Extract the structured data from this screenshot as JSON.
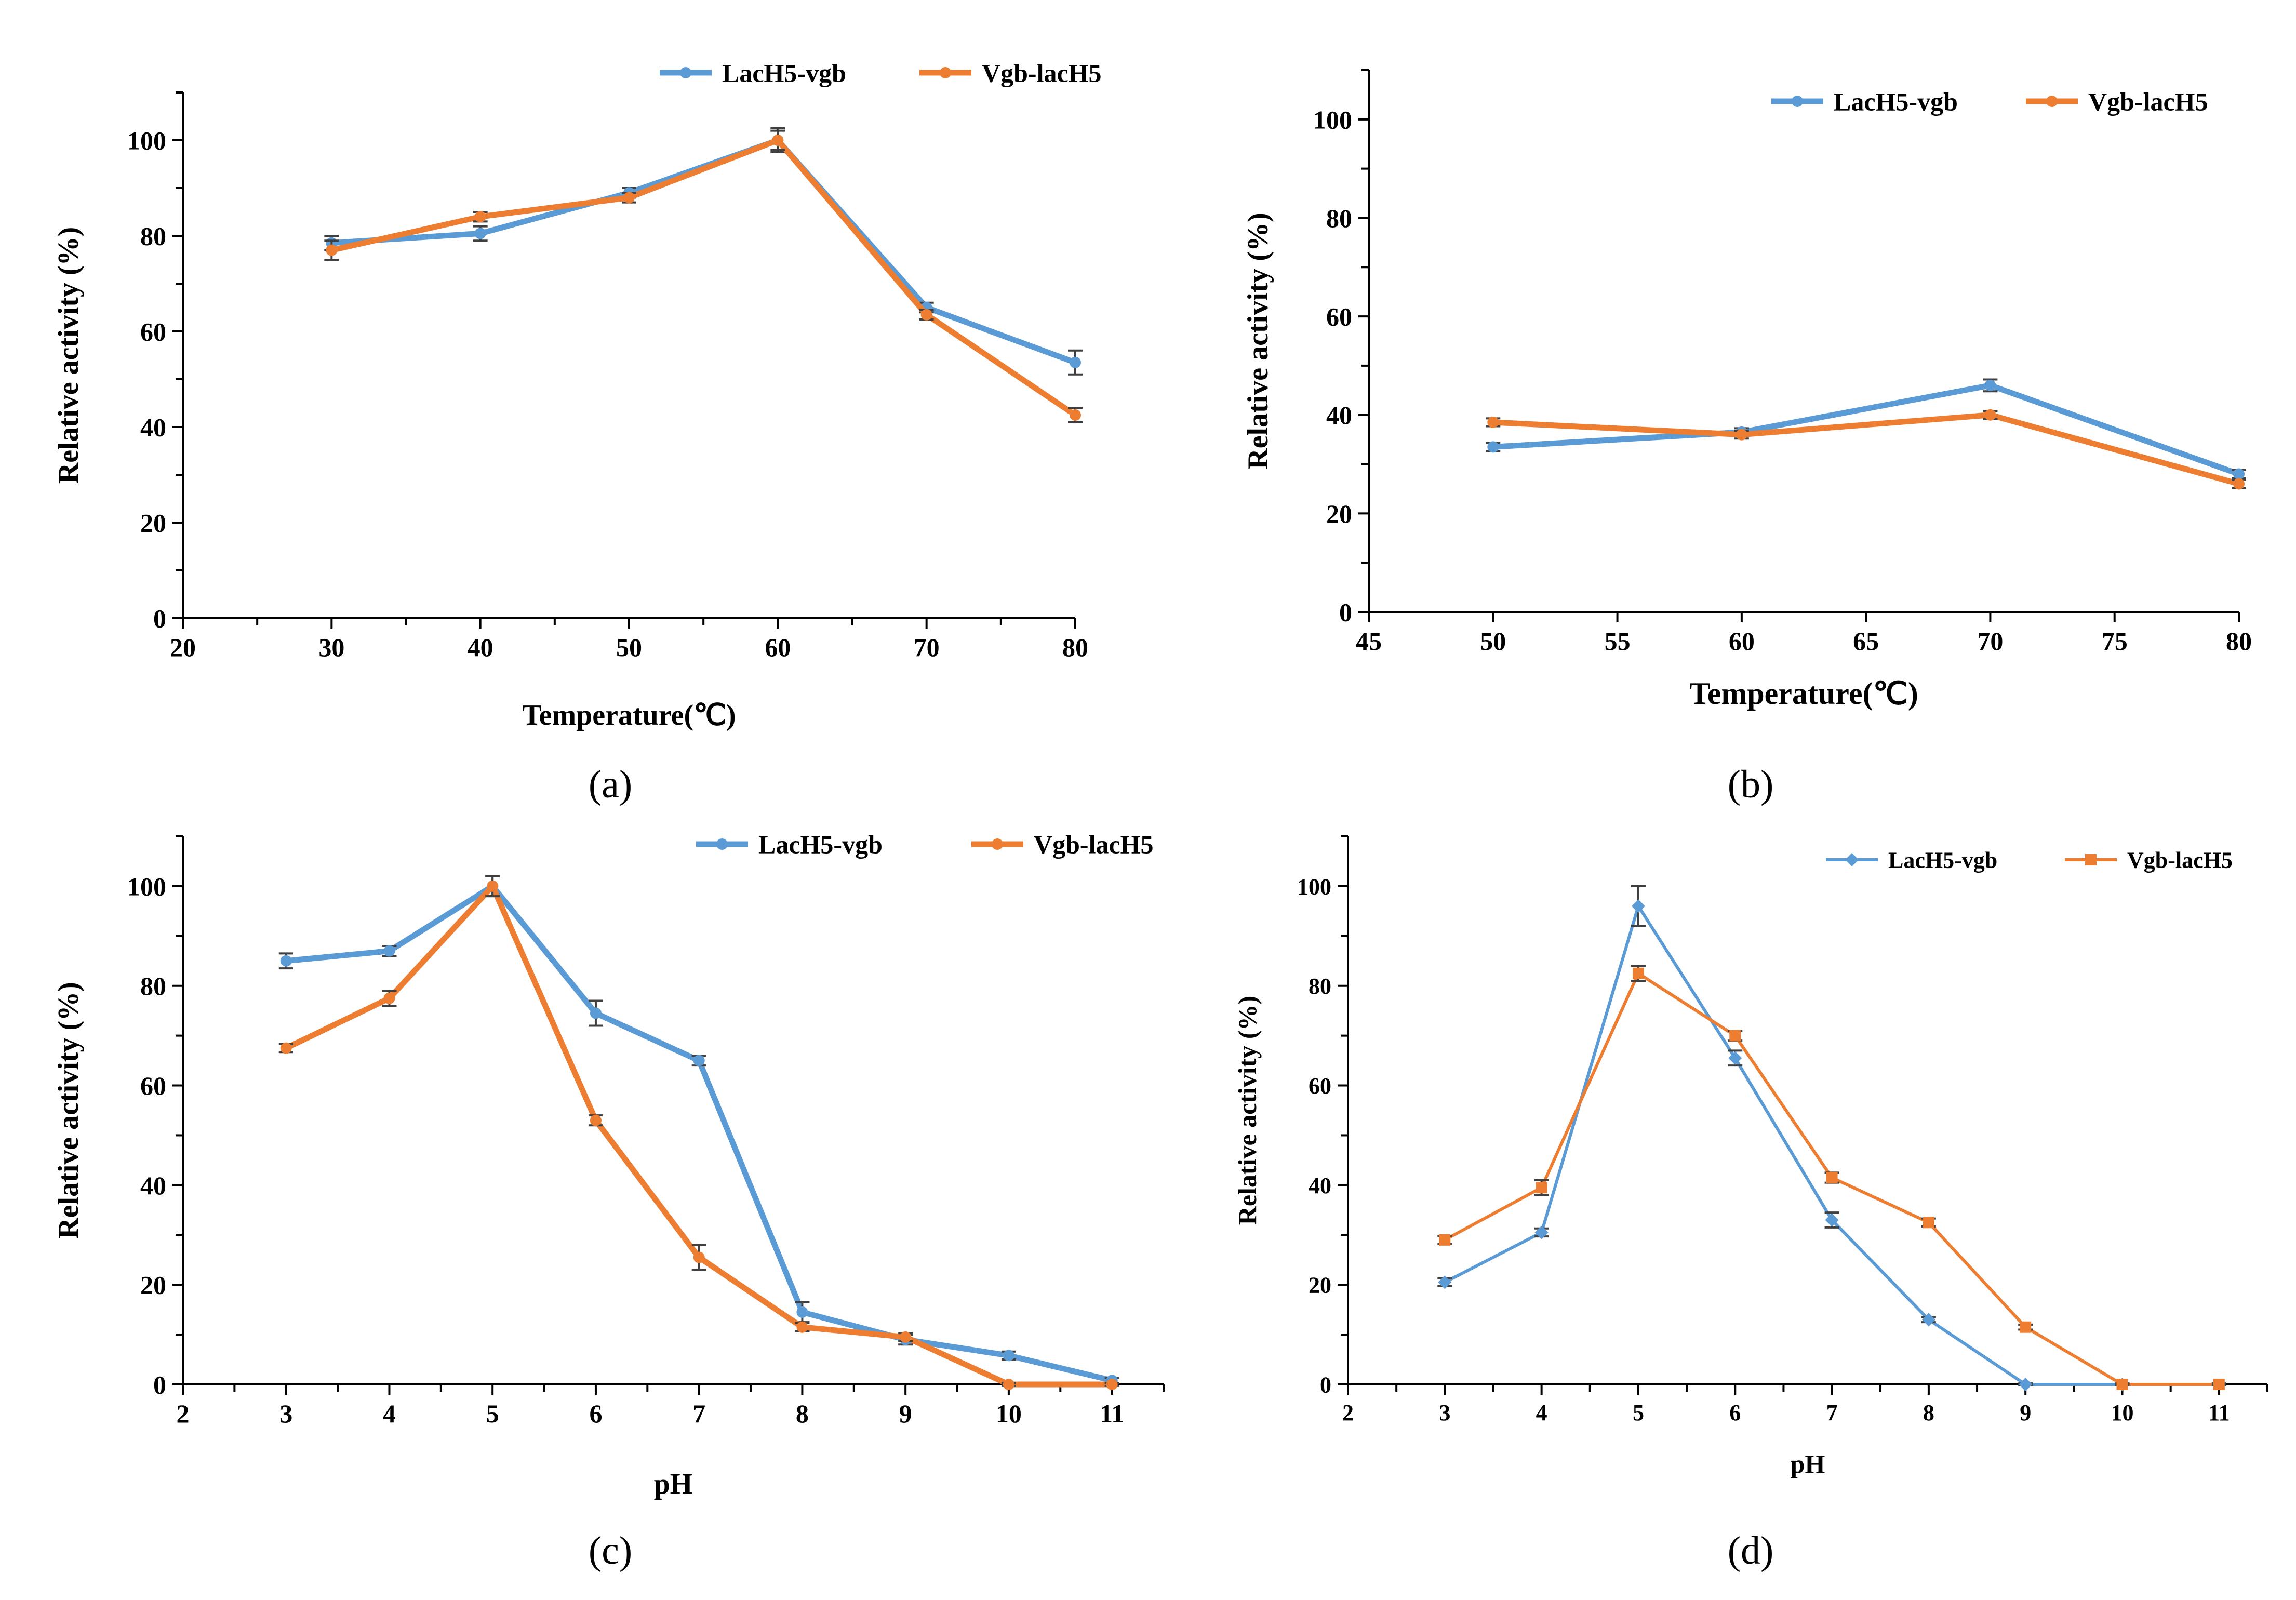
{
  "colors": {
    "series1": "#5B9BD5",
    "series2": "#ED7D31"
  },
  "chart_data": [
    {
      "type": "line",
      "panel": "(a)",
      "title": "",
      "xlabel": "Temperature(℃)",
      "ylabel": "Relative activity (%)",
      "xlim": [
        20,
        80
      ],
      "ylim": [
        0,
        110
      ],
      "xticks": [
        20,
        30,
        40,
        50,
        60,
        70,
        80
      ],
      "yticks": [
        0,
        20,
        40,
        60,
        80,
        100
      ],
      "x": [
        30,
        40,
        50,
        60,
        70,
        80
      ],
      "legend_position": "top-right",
      "series": [
        {
          "name": "LacH5-vgb",
          "values": [
            78.5,
            80.5,
            89,
            100,
            65,
            53.5
          ],
          "errors": [
            1.5,
            1.5,
            1.0,
            2.5,
            1.0,
            2.5
          ],
          "marker": "circle"
        },
        {
          "name": "Vgb-lacH5",
          "values": [
            77,
            84,
            88,
            100,
            63.5,
            42.5
          ],
          "errors": [
            2.0,
            1.0,
            1.0,
            2.0,
            1.0,
            1.5
          ],
          "marker": "circle"
        }
      ]
    },
    {
      "type": "line",
      "panel": "(b)",
      "title": "",
      "xlabel": "Temperature(℃)",
      "ylabel": "Relative activity (%)",
      "xlim": [
        45,
        80
      ],
      "ylim": [
        0,
        110
      ],
      "xticks": [
        45,
        50,
        55,
        60,
        65,
        70,
        75,
        80
      ],
      "yticks": [
        0,
        20,
        40,
        60,
        80,
        100
      ],
      "x": [
        50,
        60,
        70,
        80
      ],
      "legend_position": "top-right",
      "series": [
        {
          "name": "LacH5-vgb",
          "values": [
            33.5,
            36.5,
            46,
            28
          ],
          "errors": [
            0.8,
            0.8,
            1.2,
            0.8
          ],
          "marker": "circle"
        },
        {
          "name": "Vgb-lacH5",
          "values": [
            38.5,
            36,
            40,
            26
          ],
          "errors": [
            0.8,
            0.8,
            0.8,
            0.8
          ],
          "marker": "circle"
        }
      ]
    },
    {
      "type": "line",
      "panel": "(c)",
      "title": "",
      "xlabel": "pH",
      "ylabel": "Relative activity (%)",
      "xlim": [
        2,
        11.5
      ],
      "ylim": [
        0,
        110
      ],
      "xticks": [
        2,
        3,
        4,
        5,
        6,
        7,
        8,
        9,
        10,
        11
      ],
      "yticks": [
        0,
        20,
        40,
        60,
        80,
        100
      ],
      "x": [
        3,
        4,
        5,
        6,
        7,
        8,
        9,
        10,
        11
      ],
      "legend_position": "top-right",
      "series": [
        {
          "name": "LacH5-vgb",
          "values": [
            85,
            87,
            100,
            74.5,
            65,
            14.5,
            9,
            5.8,
            0.8
          ],
          "errors": [
            1.5,
            1.0,
            2.0,
            2.5,
            1.0,
            2.0,
            1.0,
            0.8,
            0.5
          ],
          "marker": "circle"
        },
        {
          "name": "Vgb-lacH5",
          "values": [
            67.5,
            77.5,
            100,
            53,
            25.5,
            11.5,
            9.5,
            0,
            0
          ],
          "errors": [
            0.8,
            1.5,
            2.0,
            1.0,
            2.5,
            0.8,
            0.8,
            0.3,
            0.3
          ],
          "marker": "circle"
        }
      ]
    },
    {
      "type": "line",
      "panel": "(d)",
      "title": "",
      "xlabel": "pH",
      "ylabel": "Relative activity (%)",
      "xlim": [
        2,
        11.5
      ],
      "ylim": [
        0,
        110
      ],
      "xticks": [
        2,
        3,
        4,
        5,
        6,
        7,
        8,
        9,
        10,
        11
      ],
      "yticks": [
        0,
        20,
        40,
        60,
        80,
        100
      ],
      "x": [
        3,
        4,
        5,
        6,
        7,
        8,
        9,
        10,
        11
      ],
      "legend_position": "top-right",
      "series": [
        {
          "name": "LacH5-vgb",
          "values": [
            20.5,
            30.5,
            96,
            65.5,
            33,
            13,
            0,
            0,
            null
          ],
          "errors": [
            0.8,
            0.8,
            4.0,
            1.5,
            1.5,
            0.5,
            0.2,
            0,
            0
          ],
          "marker": "diamond"
        },
        {
          "name": "Vgb-lacH5",
          "values": [
            29,
            39.5,
            82.5,
            70,
            41.5,
            32.5,
            11.5,
            0,
            0
          ],
          "errors": [
            0.8,
            1.5,
            1.5,
            1.0,
            1.0,
            0.8,
            0.5,
            0.2,
            0.2
          ],
          "marker": "square"
        }
      ]
    }
  ]
}
